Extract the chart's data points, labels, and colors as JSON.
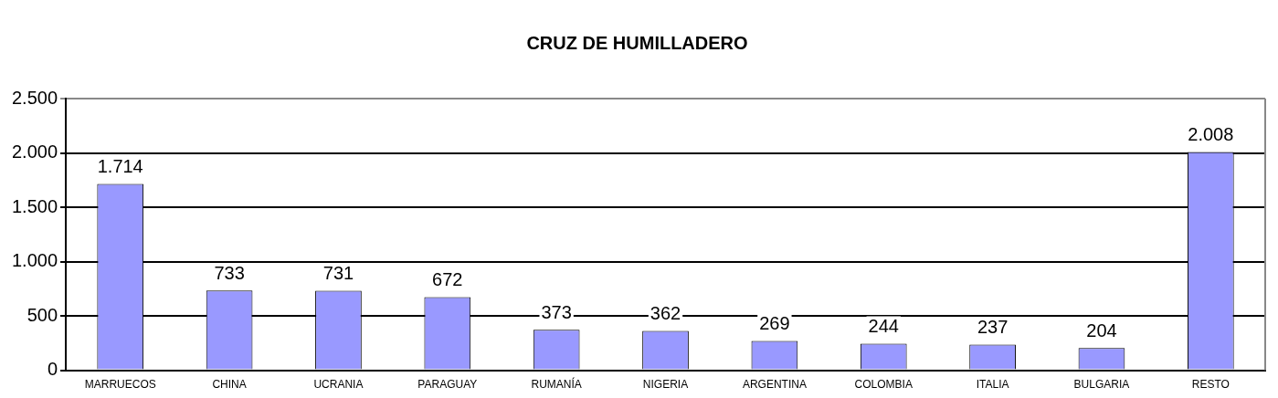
{
  "chart_data": {
    "type": "bar",
    "title": "CRUZ DE HUMILLADERO",
    "categories": [
      "MARRUECOS",
      "CHINA",
      "UCRANIA",
      "PARAGUAY",
      "RUMANÍA",
      "NIGERIA",
      "ARGENTINA",
      "COLOMBIA",
      "ITALIA",
      "BULGARIA",
      "RESTO"
    ],
    "values": [
      1714,
      733,
      731,
      672,
      373,
      362,
      269,
      244,
      237,
      204,
      2008
    ],
    "value_labels": [
      "1.714",
      "733",
      "731",
      "672",
      "373",
      "362",
      "269",
      "244",
      "237",
      "204",
      "2.008"
    ],
    "color": "#9999ff",
    "ylim": [
      0,
      2500
    ],
    "yticks": [
      0,
      500,
      {
        "value": 1000,
        "label": "1.000"
      },
      {
        "value": 1500,
        "label": "1.500"
      },
      {
        "value": 2000,
        "label": "2.000"
      },
      {
        "value": 2500,
        "label": "2.500"
      }
    ],
    "grid": "y",
    "legend": false
  }
}
